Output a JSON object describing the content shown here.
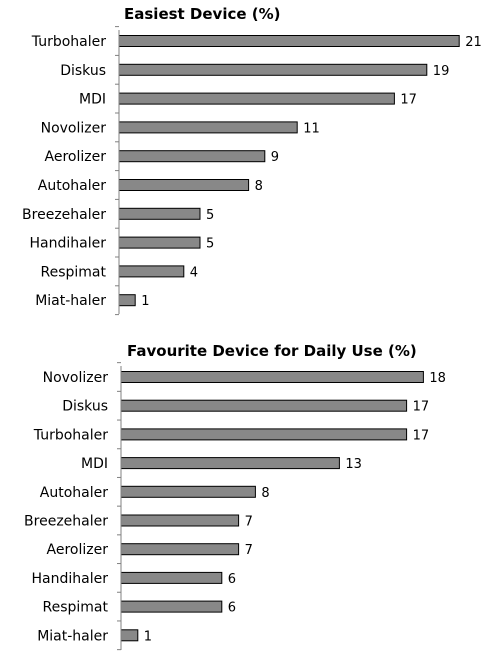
{
  "chart_data": [
    {
      "type": "bar",
      "orientation": "horizontal",
      "title": "Easiest Device (%)",
      "categories": [
        "Turbohaler",
        "Diskus",
        "MDI",
        "Novolizer",
        "Aerolizer",
        "Autohaler",
        "Breezehaler",
        "Handihaler",
        "Respimat",
        "Miat-haler"
      ],
      "values": [
        21,
        19,
        17,
        11,
        9,
        8,
        5,
        5,
        4,
        1
      ],
      "xlim": [
        0,
        21
      ],
      "grid": false,
      "bar_color": "#888888"
    },
    {
      "type": "bar",
      "orientation": "horizontal",
      "title": "Favourite Device for Daily Use (%)",
      "categories": [
        "Novolizer",
        "Diskus",
        "Turbohaler",
        "MDI",
        "Autohaler",
        "Breezehaler",
        "Aerolizer",
        "Handihaler",
        "Respimat",
        "Miat-haler"
      ],
      "values": [
        18,
        17,
        17,
        13,
        8,
        7,
        7,
        6,
        6,
        1
      ],
      "xlim": [
        0,
        18
      ],
      "grid": false,
      "bar_color": "#888888"
    }
  ]
}
